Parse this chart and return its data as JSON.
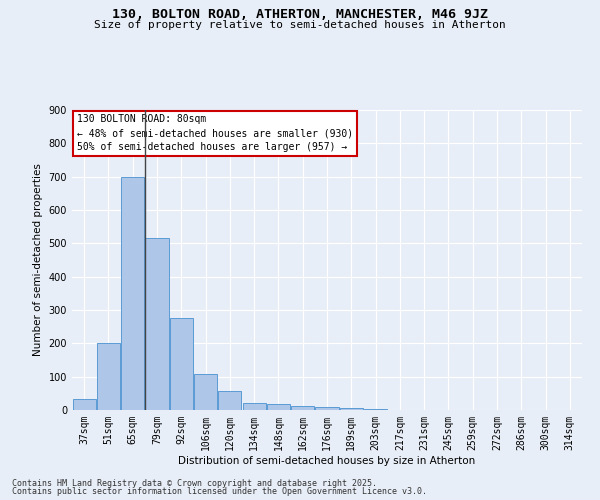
{
  "title_line1": "130, BOLTON ROAD, ATHERTON, MANCHESTER, M46 9JZ",
  "title_line2": "Size of property relative to semi-detached houses in Atherton",
  "xlabel": "Distribution of semi-detached houses by size in Atherton",
  "ylabel": "Number of semi-detached properties",
  "categories": [
    "37sqm",
    "51sqm",
    "65sqm",
    "79sqm",
    "92sqm",
    "106sqm",
    "120sqm",
    "134sqm",
    "148sqm",
    "162sqm",
    "176sqm",
    "189sqm",
    "203sqm",
    "217sqm",
    "231sqm",
    "245sqm",
    "259sqm",
    "272sqm",
    "286sqm",
    "300sqm",
    "314sqm"
  ],
  "values": [
    32,
    200,
    700,
    515,
    275,
    107,
    57,
    22,
    17,
    13,
    8,
    5,
    2,
    1,
    0,
    0,
    0,
    0,
    0,
    0,
    0
  ],
  "bar_color": "#aec6e8",
  "bar_edge_color": "#5b9bd5",
  "vline_x": 2.5,
  "annotation_title": "130 BOLTON ROAD: 80sqm",
  "annotation_line1": "← 48% of semi-detached houses are smaller (930)",
  "annotation_line2": "50% of semi-detached houses are larger (957) →",
  "annotation_box_color": "#ffffff",
  "annotation_box_edge": "#cc0000",
  "ylim": [
    0,
    900
  ],
  "yticks": [
    0,
    100,
    200,
    300,
    400,
    500,
    600,
    700,
    800,
    900
  ],
  "background_color": "#e8eef7",
  "grid_color": "#ffffff",
  "footnote_line1": "Contains HM Land Registry data © Crown copyright and database right 2025.",
  "footnote_line2": "Contains public sector information licensed under the Open Government Licence v3.0."
}
